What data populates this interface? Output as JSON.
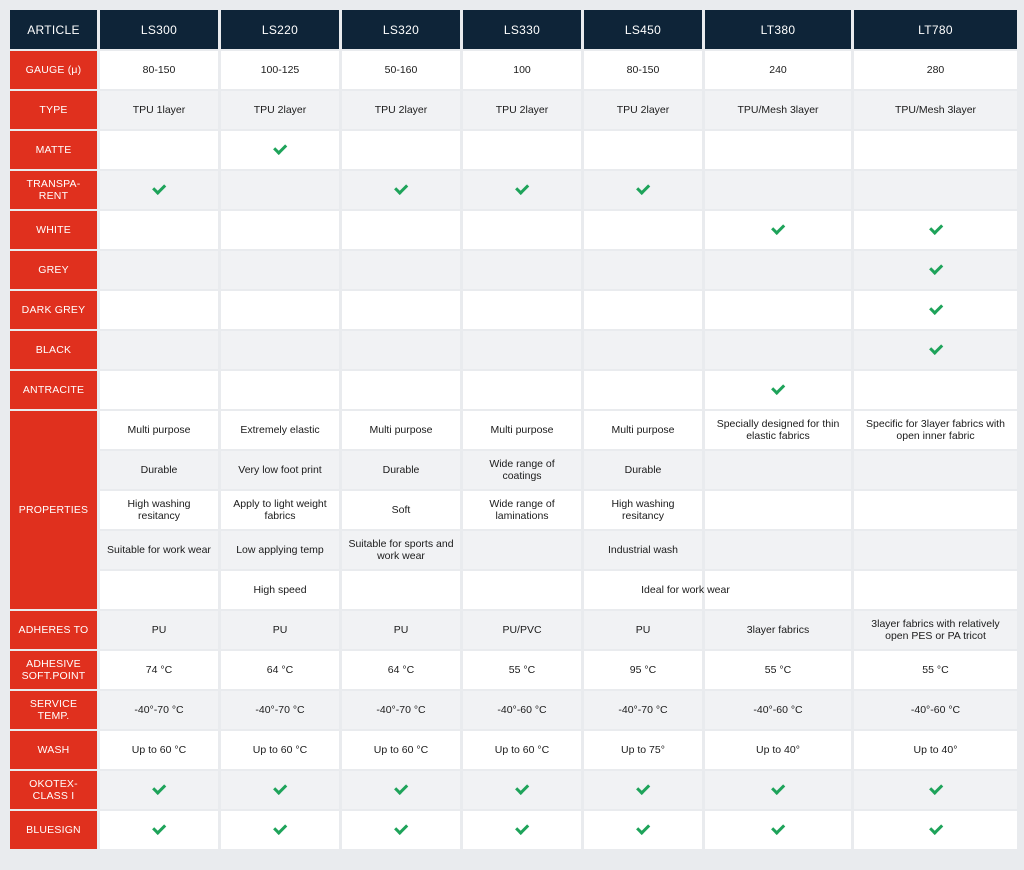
{
  "header": {
    "label": "ARTICLE",
    "columns": [
      "LS300",
      "LS220",
      "LS320",
      "LS330",
      "LS450",
      "LT380",
      "LT780"
    ]
  },
  "rows": [
    {
      "label": "GAUGE (μ)",
      "values": [
        "80-150",
        "100-125",
        "50-160",
        "100",
        "80-150",
        "240",
        "280"
      ]
    },
    {
      "label": "TYPE",
      "values": [
        "TPU 1layer",
        "TPU 2layer",
        "TPU 2layer",
        "TPU 2layer",
        "TPU 2layer",
        "TPU/Mesh 3layer",
        "TPU/Mesh 3layer"
      ]
    },
    {
      "label": "MATTE",
      "checks": [
        false,
        true,
        false,
        false,
        false,
        false,
        false
      ]
    },
    {
      "label": "TRANSPA-\nRENT",
      "checks": [
        true,
        false,
        true,
        true,
        true,
        false,
        false
      ]
    },
    {
      "label": "WHITE",
      "checks": [
        false,
        false,
        false,
        false,
        false,
        true,
        true
      ]
    },
    {
      "label": "GREY",
      "checks": [
        false,
        false,
        false,
        false,
        false,
        false,
        true
      ]
    },
    {
      "label": "DARK GREY",
      "checks": [
        false,
        false,
        false,
        false,
        false,
        false,
        true
      ]
    },
    {
      "label": "BLACK",
      "checks": [
        false,
        false,
        false,
        false,
        false,
        false,
        true
      ]
    },
    {
      "label": "ANTRACITE",
      "checks": [
        false,
        false,
        false,
        false,
        false,
        true,
        false
      ]
    }
  ],
  "properties": {
    "label": "PROPERTIES",
    "columns": [
      [
        "Multi purpose",
        "Durable",
        "High washing resitancy",
        "Suitable for work wear",
        ""
      ],
      [
        "Extremely elastic",
        "Very low foot print",
        "Apply to light weight fabrics",
        "Low applying temp",
        "High speed"
      ],
      [
        "Multi purpose",
        "Durable",
        "Soft",
        "Suitable for sports and work wear",
        ""
      ],
      [
        "Multi purpose",
        "Wide range of coatings",
        "Wide range of laminations",
        "",
        ""
      ],
      [
        "Multi purpose",
        "Durable",
        "High washing resitancy",
        "Industrial wash",
        ""
      ],
      [
        "Specially designed for thin elastic fabrics",
        "",
        "",
        "",
        ""
      ],
      [
        "Specific for 3layer fabrics with open inner fabric",
        "",
        "",
        "",
        ""
      ]
    ],
    "shared_last": "Ideal for work wear"
  },
  "rows2": [
    {
      "label": "ADHERES TO",
      "values": [
        "PU",
        "PU",
        "PU",
        "PU/PVC",
        "PU",
        "3layer fabrics",
        "3layer fabrics with relatively open PES or PA tricot"
      ]
    },
    {
      "label": "ADHESIVE\nSOFT.POINT",
      "values": [
        "74 °C",
        "64 °C",
        "64 °C",
        "55 °C",
        "95 °C",
        "55 °C",
        "55 °C"
      ]
    },
    {
      "label": "SERVICE\nTEMP.",
      "values": [
        "-40°-70 °C",
        "-40°-70 °C",
        "-40°-70 °C",
        "-40°-60 °C",
        "-40°-70 °C",
        "-40°-60 °C",
        "-40°-60 °C"
      ]
    },
    {
      "label": "WASH",
      "values": [
        "Up to 60 °C",
        "Up to 60 °C",
        "Up to 60 °C",
        "Up to 60 °C",
        "Up to 75°",
        "Up to 40°",
        "Up to 40°"
      ]
    },
    {
      "label": "OKOTEX-\nCLASS I",
      "checks": [
        true,
        true,
        true,
        true,
        true,
        true,
        true
      ]
    },
    {
      "label": "BLUESIGN",
      "checks": [
        true,
        true,
        true,
        true,
        true,
        true,
        true
      ]
    }
  ],
  "colors": {
    "header_bg": "#0e2438",
    "label_bg": "#e0301e",
    "check": "#1ea35a",
    "row_white": "#ffffff",
    "row_grey": "#f1f2f4"
  },
  "icons": {
    "check": "checkmark-icon"
  }
}
